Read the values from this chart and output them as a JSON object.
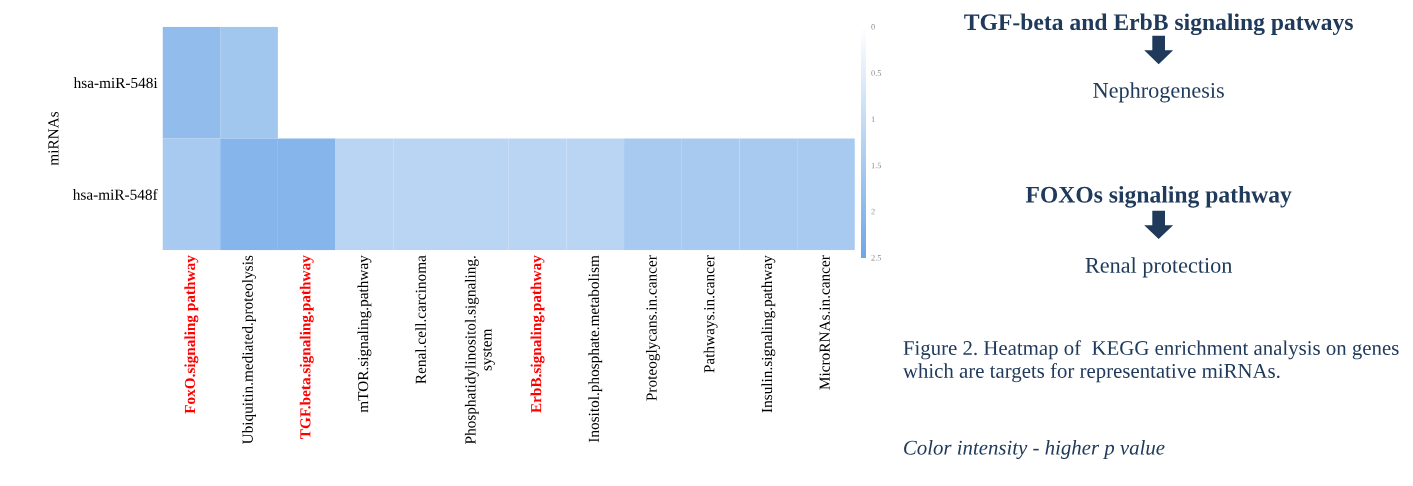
{
  "chart_data": {
    "type": "heatmap",
    "ylabel": "miRNAs",
    "categories": [
      "FoxO.signaling pathway",
      "Ubiquitin.mediated.proteolysis",
      "TGF.beta.signaling.pathway",
      "mTOR.signaling.pathway",
      "Renal.cell.carcinoma",
      "Phosphatidylinositol.signaling.\nsystem",
      "ErbB.signaling.pathway",
      "Inositol.phosphate.metabolism",
      "Proteoglycans.in.cancer",
      "Pathways.in.cancer",
      "Insulin.signaling.pathway",
      "MicroRNAs.in.cancer"
    ],
    "y_categories": [
      "hsa-miR-548i",
      "hsa-miR-548f"
    ],
    "cells": [
      [
        1.9,
        1.6,
        null,
        null,
        null,
        null,
        null,
        null,
        null,
        null,
        null,
        null
      ],
      [
        1.5,
        2.1,
        2.1,
        1.2,
        1.2,
        1.2,
        1.2,
        1.2,
        1.5,
        1.5,
        1.5,
        1.5
      ]
    ],
    "clim": [
      0,
      2.5
    ],
    "cticks": [
      0,
      0.5,
      1,
      1.5,
      2,
      2.5
    ],
    "annotations": [
      "TGF-beta and ErbB signaling patways",
      "Nephrogenesis",
      "FOXOs signaling pathway",
      "Renal protection",
      "Figure 2. Heatmap of  KEGG enrichment analysis on genes which are targets for representative miRNAs.",
      "Color intensity - higher p value"
    ]
  }
}
